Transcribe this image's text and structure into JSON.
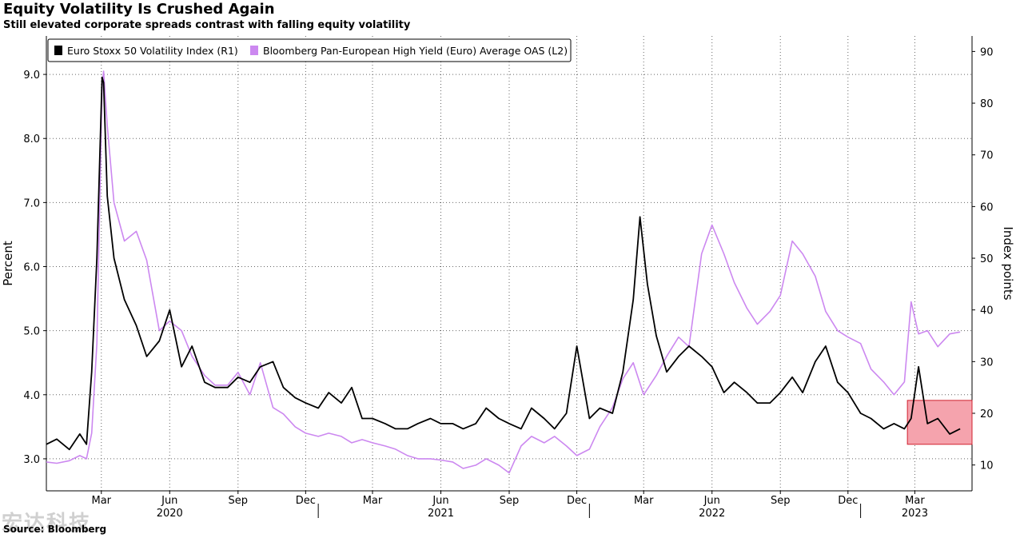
{
  "header": {
    "title": "Equity Volatility Is Crushed Again",
    "subtitle": "Still elevated corporate spreads contrast with falling equity volatility"
  },
  "footer": {
    "source": "Source: Bloomberg",
    "watermark": "宏达科技"
  },
  "colors": {
    "oas": "#cc88f0",
    "vstoxx": "#000000",
    "highlight_fill": "#f5a3ad",
    "highlight_stroke": "#d0202e"
  },
  "chart_data": {
    "type": "line",
    "legend_position": "top-left",
    "grid": true,
    "ylabel_left": "Percent",
    "ylabel_right": "Index points",
    "ylim_left": [
      2.5,
      9.6
    ],
    "ylim_right": [
      5,
      93
    ],
    "yticks_left": [
      "3.0",
      "4.0",
      "5.0",
      "6.0",
      "7.0",
      "8.0",
      "9.0"
    ],
    "yticks_right": [
      "10",
      "20",
      "30",
      "40",
      "50",
      "60",
      "70",
      "80",
      "90"
    ],
    "month_ticks": [
      "Mar",
      "Jun",
      "Sep",
      "Dec",
      "Mar",
      "Jun",
      "Sep",
      "Dec",
      "Mar",
      "Jun",
      "Sep",
      "Dec",
      "Mar"
    ],
    "month_tick_dates": [
      "2020-03",
      "2020-06",
      "2020-09",
      "2020-12",
      "2021-03",
      "2021-06",
      "2021-09",
      "2021-12",
      "2022-03",
      "2022-06",
      "2022-09",
      "2022-12",
      "2023-03"
    ],
    "year_labels": [
      "2020",
      "2021",
      "2022",
      "2023"
    ],
    "year_label_dates": [
      "2020-06",
      "2021-06",
      "2022-06",
      "2023-03"
    ],
    "xlim": [
      "2020-01-01",
      "2023-05-31"
    ],
    "series": [
      {
        "name": "Bloomberg Pan-European High Yield (Euro) Average OAS  (L2)",
        "axis": "left",
        "x": [
          "2020-01-01",
          "2020-01-15",
          "2020-02-01",
          "2020-02-15",
          "2020-02-24",
          "2020-03-02",
          "2020-03-09",
          "2020-03-16",
          "2020-03-18",
          "2020-03-23",
          "2020-04-01",
          "2020-04-15",
          "2020-05-01",
          "2020-05-15",
          "2020-06-01",
          "2020-06-15",
          "2020-07-01",
          "2020-07-15",
          "2020-08-01",
          "2020-08-15",
          "2020-09-01",
          "2020-09-15",
          "2020-10-01",
          "2020-10-15",
          "2020-11-01",
          "2020-11-15",
          "2020-12-01",
          "2020-12-15",
          "2021-01-01",
          "2021-01-15",
          "2021-02-01",
          "2021-02-15",
          "2021-03-01",
          "2021-03-15",
          "2021-04-01",
          "2021-04-15",
          "2021-05-01",
          "2021-05-15",
          "2021-06-01",
          "2021-06-15",
          "2021-07-01",
          "2021-07-15",
          "2021-08-01",
          "2021-08-15",
          "2021-09-01",
          "2021-09-15",
          "2021-10-01",
          "2021-10-15",
          "2021-11-01",
          "2021-11-15",
          "2021-12-01",
          "2021-12-15",
          "2022-01-01",
          "2022-01-15",
          "2022-02-01",
          "2022-02-15",
          "2022-03-01",
          "2022-03-15",
          "2022-04-01",
          "2022-04-15",
          "2022-05-01",
          "2022-05-15",
          "2022-06-01",
          "2022-06-15",
          "2022-07-01",
          "2022-07-15",
          "2022-08-01",
          "2022-08-15",
          "2022-09-01",
          "2022-09-15",
          "2022-10-01",
          "2022-10-15",
          "2022-11-01",
          "2022-11-15",
          "2022-12-01",
          "2022-12-15",
          "2023-01-01",
          "2023-01-15",
          "2023-02-01",
          "2023-02-15",
          "2023-03-01",
          "2023-03-10",
          "2023-03-20",
          "2023-04-01",
          "2023-04-15",
          "2023-05-01",
          "2023-05-15"
        ],
        "values": [
          2.95,
          2.93,
          2.97,
          3.05,
          3.0,
          3.4,
          4.8,
          8.8,
          9.05,
          8.2,
          7.0,
          6.4,
          6.55,
          6.1,
          5.0,
          5.15,
          5.0,
          4.6,
          4.3,
          4.15,
          4.15,
          4.35,
          4.0,
          4.5,
          3.8,
          3.7,
          3.5,
          3.4,
          3.35,
          3.4,
          3.35,
          3.25,
          3.3,
          3.25,
          3.2,
          3.15,
          3.05,
          3.0,
          3.0,
          2.98,
          2.95,
          2.85,
          2.9,
          3.0,
          2.9,
          2.78,
          3.2,
          3.35,
          3.25,
          3.35,
          3.2,
          3.05,
          3.15,
          3.5,
          3.8,
          4.25,
          4.5,
          4.0,
          4.3,
          4.6,
          4.9,
          4.75,
          6.2,
          6.65,
          6.2,
          5.75,
          5.35,
          5.1,
          5.3,
          5.55,
          6.4,
          6.2,
          5.85,
          5.3,
          5.0,
          4.9,
          4.8,
          4.4,
          4.2,
          4.0,
          4.2,
          5.45,
          4.95,
          5.0,
          4.75,
          4.95,
          4.98
        ]
      },
      {
        "name": "Euro Stoxx 50 Volatility Index (R1)",
        "axis": "right",
        "x": [
          "2020-01-01",
          "2020-01-15",
          "2020-02-01",
          "2020-02-15",
          "2020-02-24",
          "2020-03-02",
          "2020-03-09",
          "2020-03-16",
          "2020-03-18",
          "2020-03-23",
          "2020-04-01",
          "2020-04-15",
          "2020-05-01",
          "2020-05-15",
          "2020-06-01",
          "2020-06-15",
          "2020-07-01",
          "2020-07-15",
          "2020-08-01",
          "2020-08-15",
          "2020-09-01",
          "2020-09-15",
          "2020-10-01",
          "2020-10-15",
          "2020-11-01",
          "2020-11-15",
          "2020-12-01",
          "2020-12-15",
          "2021-01-01",
          "2021-01-15",
          "2021-02-01",
          "2021-02-15",
          "2021-03-01",
          "2021-03-15",
          "2021-04-01",
          "2021-04-15",
          "2021-05-01",
          "2021-05-15",
          "2021-06-01",
          "2021-06-15",
          "2021-07-01",
          "2021-07-15",
          "2021-08-01",
          "2021-08-15",
          "2021-09-01",
          "2021-09-15",
          "2021-10-01",
          "2021-10-15",
          "2021-11-01",
          "2021-11-15",
          "2021-12-01",
          "2021-12-15",
          "2022-01-01",
          "2022-01-15",
          "2022-02-01",
          "2022-02-15",
          "2022-03-01",
          "2022-03-10",
          "2022-03-20",
          "2022-04-01",
          "2022-04-15",
          "2022-05-01",
          "2022-05-15",
          "2022-06-01",
          "2022-06-15",
          "2022-07-01",
          "2022-07-15",
          "2022-08-01",
          "2022-08-15",
          "2022-09-01",
          "2022-09-15",
          "2022-10-01",
          "2022-10-15",
          "2022-11-01",
          "2022-11-15",
          "2022-12-01",
          "2022-12-15",
          "2023-01-01",
          "2023-01-15",
          "2023-02-01",
          "2023-02-15",
          "2023-03-01",
          "2023-03-10",
          "2023-03-20",
          "2023-04-01",
          "2023-04-15",
          "2023-05-01",
          "2023-05-15"
        ],
        "values": [
          14,
          15,
          13,
          16,
          14,
          28,
          50,
          85,
          84,
          62,
          50,
          42,
          37,
          31,
          34,
          40,
          29,
          33,
          26,
          25,
          25,
          27,
          26,
          29,
          30,
          25,
          23,
          22,
          21,
          24,
          22,
          25,
          19,
          19,
          18,
          17,
          17,
          18,
          19,
          18,
          18,
          17,
          18,
          21,
          19,
          18,
          17,
          21,
          19,
          17,
          20,
          33,
          19,
          21,
          20,
          28,
          42,
          58,
          45,
          35,
          28,
          31,
          33,
          31,
          29,
          24,
          26,
          24,
          22,
          22,
          24,
          27,
          24,
          30,
          33,
          26,
          24,
          20,
          19,
          17,
          18,
          17,
          19,
          29,
          18,
          19,
          16,
          17
        ]
      }
    ],
    "highlight_box": {
      "x_range": [
        "2023-03-05",
        "2023-05-31"
      ],
      "y_range_right": [
        14,
        22.5
      ]
    }
  }
}
